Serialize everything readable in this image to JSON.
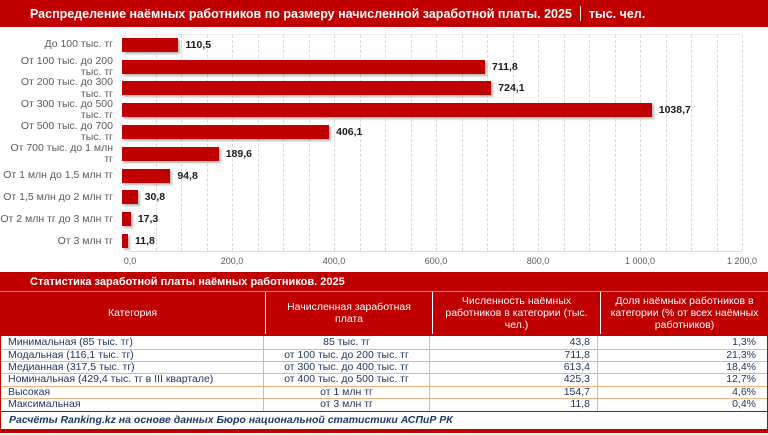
{
  "header": {
    "title": "Распределение наёмных работников по размеру начисленной заработной платы. 2025",
    "unit": "тыс. чел."
  },
  "chart_data": {
    "type": "bar",
    "orientation": "horizontal",
    "title": "Распределение наёмных работников по размеру начисленной заработной платы. 2025 | тыс. чел.",
    "categories": [
      "До 100 тыс. тг",
      "От 100 тыс. до 200 тыс. тг",
      "От 200 тыс. до 300 тыс. тг",
      "От 300 тыс. до 500 тыс. тг",
      "От 500 тыс. до 700 тыс. тг",
      "От 700 тыс. до 1 млн тг",
      "От 1 млн до 1,5 млн тг",
      "От 1,5 млн до 2 млн тг",
      "От 2 млн тг до 3 млн тг",
      "От 3 млн тг"
    ],
    "values": [
      110.5,
      711.8,
      724.1,
      1038.7,
      406.1,
      189.6,
      94.8,
      30.8,
      17.3,
      11.8
    ],
    "value_labels": [
      "110,5",
      "711,8",
      "724,1",
      "1038,7",
      "406,1",
      "189,6",
      "94,8",
      "30,8",
      "17,3",
      "11,8"
    ],
    "xlim": [
      0,
      1200
    ],
    "x_tick_labels": [
      "0,0",
      "200,0",
      "400,0",
      "600,0",
      "800,0",
      "1 000,0",
      "1 200,0"
    ],
    "grid": "vertical dashed every 50, on",
    "legend": "none",
    "bar_color": "#c00000"
  },
  "table": {
    "title": "Статистика заработной платы наёмных работников. 2025",
    "columns": [
      "Категория",
      "Начисленная заработная плата",
      "Численность наёмных работников в категории (тыс. чел.)",
      "Доля наёмных работников в категории (% от всех наёмных работников)"
    ],
    "rows": [
      [
        "Минимальная (85 тыс. тг)",
        "85 тыс. тг",
        "43,8",
        "1,3%"
      ],
      [
        "Модальная (116,1 тыс. тг)",
        "от 100 тыс. до 200 тыс. тг",
        "711,8",
        "21,3%"
      ],
      [
        "Медианная (317,5 тыс. тг)",
        "от 300 тыс. до 400 тыс. тг",
        "613,4",
        "18,4%"
      ],
      [
        "Номинальная (429,4 тыс. тг в III квартале)",
        "от 400 тыс. до 500 тыс. тг",
        "425,3",
        "12,7%"
      ],
      [
        "Высокая",
        "от 1 млн тг",
        "154,7",
        "4,6%"
      ],
      [
        "Максимальная",
        "от 3 млн тг",
        "11,8",
        "0,4%"
      ]
    ]
  },
  "footer": {
    "text": "Расчёты Ranking.kz на основе данных Бюро национальной статистики АСПиР РК"
  },
  "colors": {
    "accent": "#c00000",
    "table_text": "#1f3864",
    "category_label": "#595959",
    "grid_line": "#d9d9d9",
    "row_border": "#f4b183"
  }
}
